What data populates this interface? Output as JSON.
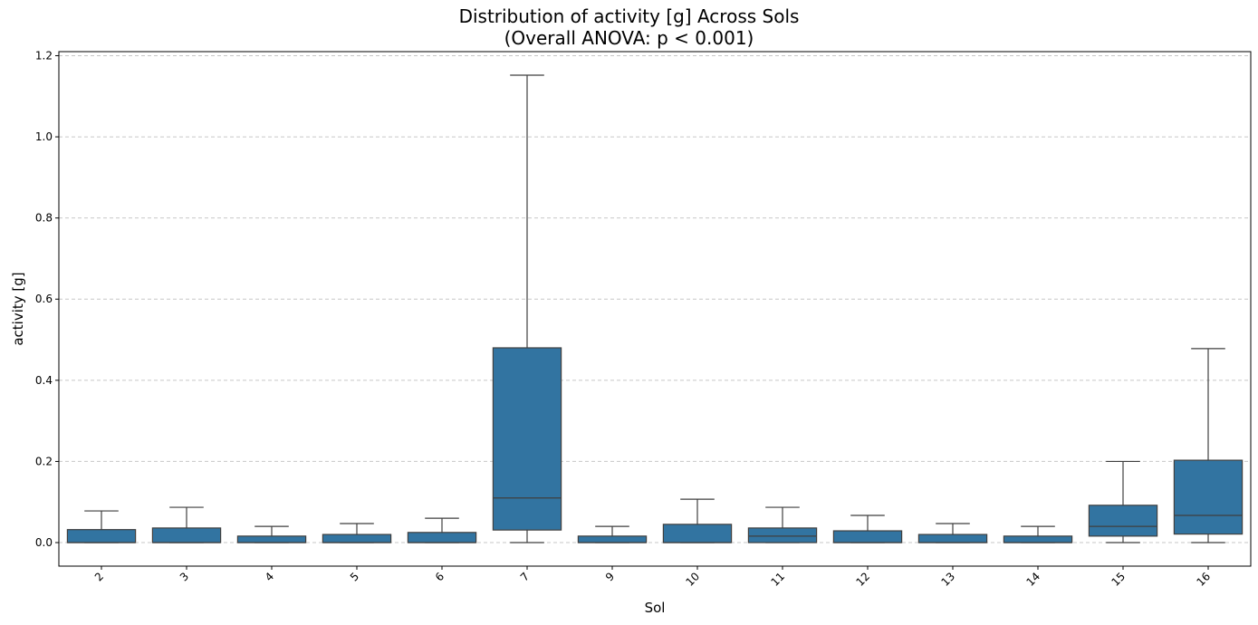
{
  "chart_data": {
    "type": "box",
    "title": "Distribution of activity [g] Across Sols",
    "subtitle": "(Overall ANOVA: p < 0.001)",
    "xlabel": "Sol",
    "ylabel": "activity [g]",
    "ylim": [
      -0.058,
      1.21
    ],
    "yticks": [
      "0.0",
      "0.2",
      "0.4",
      "0.6",
      "0.8",
      "1.0",
      "1.2"
    ],
    "grid": "y-dashed",
    "box_color": "#3274a1",
    "categories": [
      "2",
      "3",
      "4",
      "5",
      "6",
      "7",
      "9",
      "10",
      "11",
      "12",
      "13",
      "14",
      "15",
      "16"
    ],
    "boxes": [
      {
        "sol": "2",
        "whislo": 0.0,
        "q1": 0.0,
        "med": 0.0,
        "q3": 0.032,
        "whishi": 0.078
      },
      {
        "sol": "3",
        "whislo": 0.0,
        "q1": 0.0,
        "med": 0.0,
        "q3": 0.036,
        "whishi": 0.087
      },
      {
        "sol": "4",
        "whislo": 0.0,
        "q1": 0.0,
        "med": 0.0,
        "q3": 0.016,
        "whishi": 0.04
      },
      {
        "sol": "5",
        "whislo": 0.0,
        "q1": 0.0,
        "med": 0.0,
        "q3": 0.02,
        "whishi": 0.047
      },
      {
        "sol": "6",
        "whislo": 0.0,
        "q1": 0.0,
        "med": 0.0,
        "q3": 0.025,
        "whishi": 0.06
      },
      {
        "sol": "7",
        "whislo": 0.0,
        "q1": 0.031,
        "med": 0.11,
        "q3": 0.48,
        "whishi": 1.152
      },
      {
        "sol": "9",
        "whislo": 0.0,
        "q1": 0.0,
        "med": 0.0,
        "q3": 0.016,
        "whishi": 0.04
      },
      {
        "sol": "10",
        "whislo": 0.0,
        "q1": 0.0,
        "med": 0.0,
        "q3": 0.045,
        "whishi": 0.107
      },
      {
        "sol": "11",
        "whislo": 0.0,
        "q1": 0.0,
        "med": 0.016,
        "q3": 0.036,
        "whishi": 0.087
      },
      {
        "sol": "12",
        "whislo": 0.0,
        "q1": 0.0,
        "med": 0.0,
        "q3": 0.029,
        "whishi": 0.067
      },
      {
        "sol": "13",
        "whislo": 0.0,
        "q1": 0.0,
        "med": 0.0,
        "q3": 0.02,
        "whishi": 0.047
      },
      {
        "sol": "14",
        "whislo": 0.0,
        "q1": 0.0,
        "med": 0.0,
        "q3": 0.016,
        "whishi": 0.04
      },
      {
        "sol": "15",
        "whislo": 0.0,
        "q1": 0.016,
        "med": 0.04,
        "q3": 0.092,
        "whishi": 0.2
      },
      {
        "sol": "16",
        "whislo": 0.0,
        "q1": 0.021,
        "med": 0.067,
        "q3": 0.203,
        "whishi": 0.478
      }
    ]
  }
}
